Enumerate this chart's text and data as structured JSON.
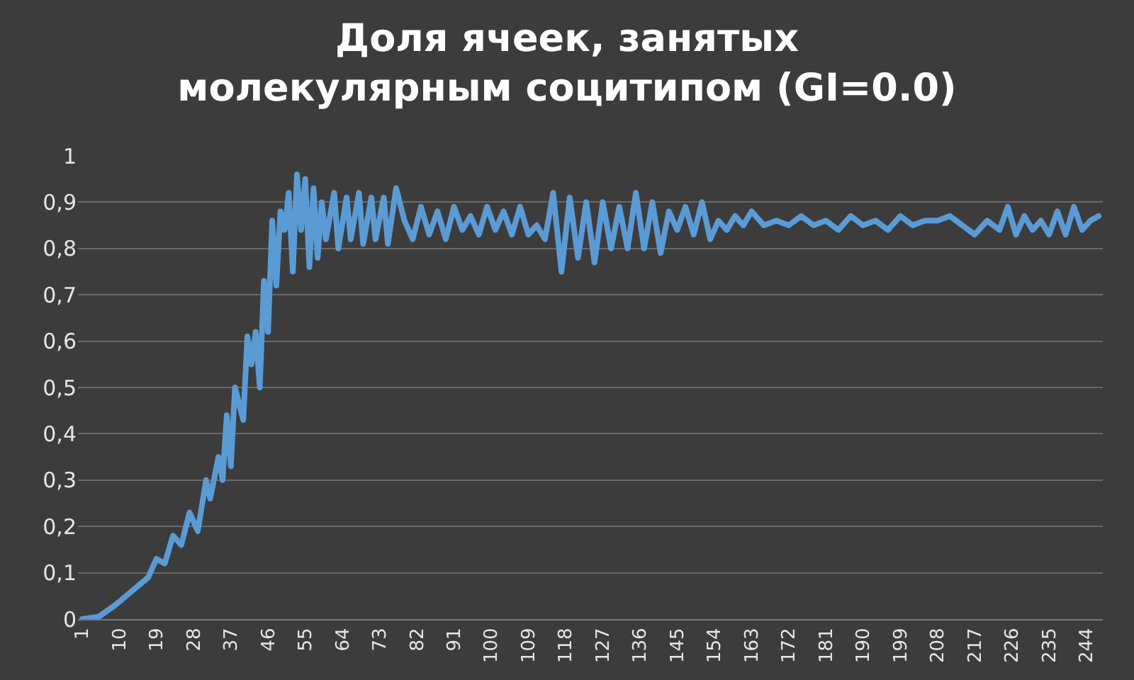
{
  "chart_data": {
    "type": "line",
    "title": "Доля ячеек, занятых\nмолекулярным социтипом (GI=0.0)",
    "x": [
      1,
      5,
      9,
      13,
      17,
      19,
      21,
      23,
      25,
      27,
      29,
      31,
      32,
      34,
      35,
      36,
      37,
      38,
      40,
      41,
      42,
      43,
      44,
      45,
      46,
      47,
      48,
      49,
      50,
      51,
      52,
      53,
      54,
      55,
      56,
      57,
      58,
      59,
      60,
      62,
      63,
      65,
      66,
      68,
      69,
      71,
      72,
      74,
      75,
      77,
      79,
      81,
      83,
      85,
      87,
      89,
      91,
      93,
      95,
      97,
      99,
      101,
      103,
      105,
      107,
      109,
      111,
      113,
      115,
      117,
      119,
      121,
      123,
      125,
      127,
      129,
      131,
      133,
      135,
      137,
      139,
      141,
      143,
      145,
      147,
      149,
      151,
      153,
      155,
      157,
      159,
      161,
      163,
      166,
      169,
      172,
      175,
      178,
      181,
      184,
      187,
      190,
      193,
      196,
      199,
      202,
      205,
      208,
      211,
      214,
      217,
      220,
      223,
      225,
      227,
      229,
      231,
      233,
      235,
      237,
      239,
      241,
      243,
      245,
      247
    ],
    "series": [
      {
        "color": "#5b9bd5",
        "values": [
          0,
          0.005,
          0.03,
          0.06,
          0.09,
          0.13,
          0.12,
          0.18,
          0.16,
          0.23,
          0.19,
          0.3,
          0.26,
          0.35,
          0.3,
          0.44,
          0.33,
          0.5,
          0.43,
          0.61,
          0.55,
          0.62,
          0.5,
          0.73,
          0.62,
          0.86,
          0.72,
          0.88,
          0.84,
          0.92,
          0.75,
          0.96,
          0.84,
          0.95,
          0.76,
          0.93,
          0.78,
          0.9,
          0.82,
          0.92,
          0.8,
          0.91,
          0.82,
          0.92,
          0.81,
          0.91,
          0.82,
          0.91,
          0.81,
          0.93,
          0.86,
          0.82,
          0.89,
          0.83,
          0.88,
          0.82,
          0.89,
          0.84,
          0.87,
          0.83,
          0.89,
          0.84,
          0.88,
          0.83,
          0.89,
          0.83,
          0.85,
          0.82,
          0.92,
          0.75,
          0.91,
          0.78,
          0.9,
          0.77,
          0.9,
          0.8,
          0.89,
          0.8,
          0.92,
          0.8,
          0.9,
          0.79,
          0.88,
          0.84,
          0.89,
          0.83,
          0.9,
          0.82,
          0.86,
          0.84,
          0.87,
          0.85,
          0.88,
          0.85,
          0.86,
          0.85,
          0.87,
          0.85,
          0.86,
          0.84,
          0.87,
          0.85,
          0.86,
          0.84,
          0.87,
          0.85,
          0.86,
          0.86,
          0.87,
          0.85,
          0.83,
          0.86,
          0.84,
          0.89,
          0.83,
          0.87,
          0.84,
          0.86,
          0.83,
          0.88,
          0.83,
          0.89,
          0.84,
          0.86,
          0.87
        ]
      }
    ],
    "xlim": [
      0,
      248
    ],
    "xticks": [
      1,
      10,
      19,
      28,
      37,
      46,
      55,
      64,
      73,
      82,
      91,
      100,
      109,
      118,
      127,
      136,
      145,
      154,
      163,
      172,
      181,
      190,
      199,
      208,
      217,
      226,
      235,
      244
    ],
    "ylim": [
      0,
      1
    ],
    "yticks": [
      0,
      {
        "value": 0.1,
        "label": "0,1"
      },
      {
        "value": 0.2,
        "label": "0,2"
      },
      {
        "value": 0.3,
        "label": "0,3"
      },
      {
        "value": 0.4,
        "label": "0,4"
      },
      {
        "value": 0.5,
        "label": "0,5"
      },
      {
        "value": 0.6,
        "label": "0,6"
      },
      {
        "value": 0.7,
        "label": "0,7"
      },
      {
        "value": 0.8,
        "label": "0,8"
      },
      {
        "value": 0.9,
        "label": "0,9"
      },
      1
    ],
    "grid": "y",
    "marker": "none",
    "line_style": "solid"
  }
}
